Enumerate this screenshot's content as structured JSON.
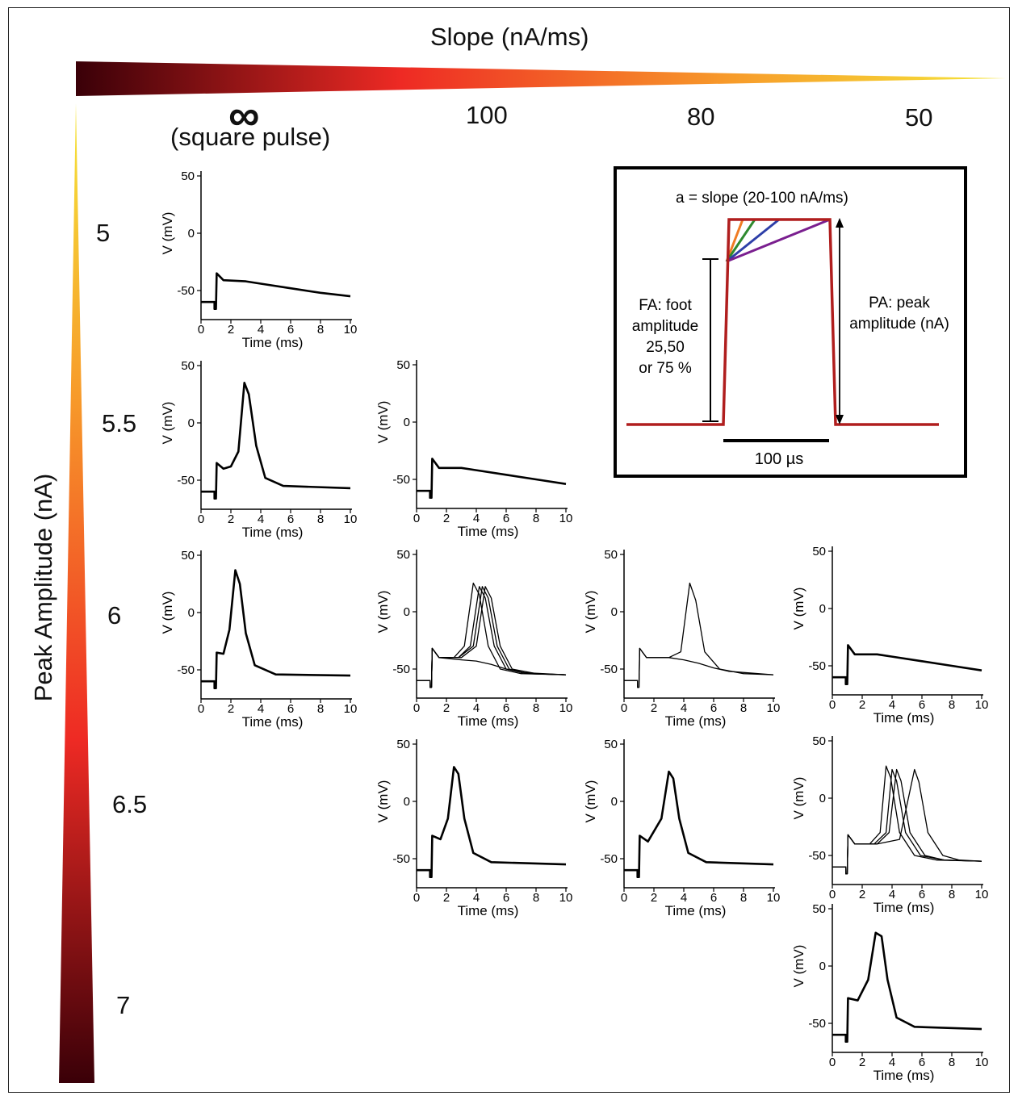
{
  "slope_axis": {
    "title": "Slope (nA/ms)",
    "infinity_symbol": "∞",
    "infinity_caption": "(square pulse)",
    "columns": [
      "100",
      "80",
      "50"
    ]
  },
  "peak_axis": {
    "title": "Peak Amplitude (nA)",
    "rows": [
      "5",
      "5.5",
      "6",
      "6.5",
      "7"
    ]
  },
  "gradient_colors": {
    "dark": "#3a0008",
    "red": "#ee2a24",
    "orange": "#f79a2a",
    "yellow": "#f5e63a"
  },
  "inset": {
    "slope_label": "a = slope (20-100 nA/ms)",
    "fa_label": [
      "FA: foot",
      "amplitude",
      "25,50",
      "or 75 %"
    ],
    "pa_label": [
      "PA: peak",
      "amplitude (nA)"
    ],
    "time_label": "100 µs",
    "slope_line_colors": [
      "#f07b24",
      "#2f8a2f",
      "#2e3fa8",
      "#7a1f8f"
    ],
    "pulse_color": "#b01e1e"
  },
  "chart_data": [
    {
      "type": "line",
      "panel": "square-5",
      "xlabel": "Time (ms)",
      "ylabel": "V (mV)",
      "xticks": [
        "0",
        "2",
        "4",
        "6",
        "8",
        "10"
      ],
      "yticks": [
        "50",
        "0",
        "-50"
      ],
      "xlim": [
        0,
        10
      ],
      "ylim": [
        -70,
        55
      ],
      "response": "subthreshold",
      "traces": [
        {
          "x": [
            0,
            0.9,
            0.9,
            1,
            1.05,
            1.5,
            3,
            4,
            6,
            8,
            10
          ],
          "y": [
            -60,
            -60,
            -66,
            -66,
            -35,
            -41,
            -42,
            -44,
            -48,
            -52,
            -55
          ]
        }
      ]
    },
    {
      "type": "line",
      "panel": "square-5.5",
      "xlabel": "Time (ms)",
      "ylabel": "V (mV)",
      "xticks": [
        "0",
        "2",
        "4",
        "6",
        "8",
        "10"
      ],
      "yticks": [
        "50",
        "0",
        "-50"
      ],
      "xlim": [
        0,
        10
      ],
      "ylim": [
        -70,
        55
      ],
      "response": "spike",
      "spike_peak_time_ms": 3,
      "spike_peak_mv": 35,
      "traces": [
        {
          "x": [
            0,
            0.9,
            0.9,
            1,
            1.05,
            1.5,
            2,
            2.5,
            2.9,
            3.2,
            3.7,
            4.3,
            5.5,
            10
          ],
          "y": [
            -60,
            -60,
            -66,
            -66,
            -35,
            -40,
            -38,
            -25,
            35,
            25,
            -20,
            -48,
            -55,
            -57
          ]
        }
      ]
    },
    {
      "type": "line",
      "panel": "square-6",
      "xlabel": "Time (ms)",
      "ylabel": "V (mV)",
      "xticks": [
        "0",
        "2",
        "4",
        "6",
        "8",
        "10"
      ],
      "yticks": [
        "50",
        "0",
        "-50"
      ],
      "xlim": [
        0,
        10
      ],
      "ylim": [
        -70,
        55
      ],
      "response": "spike",
      "spike_peak_time_ms": 2.3,
      "spike_peak_mv": 37,
      "traces": [
        {
          "x": [
            0,
            0.9,
            0.9,
            1,
            1.05,
            1.5,
            1.9,
            2.3,
            2.6,
            3,
            3.6,
            5,
            10
          ],
          "y": [
            -60,
            -60,
            -66,
            -66,
            -35,
            -36,
            -15,
            37,
            25,
            -18,
            -46,
            -54,
            -55
          ]
        }
      ]
    },
    {
      "type": "line",
      "panel": "slope100-5.5",
      "xlabel": "Time (ms)",
      "ylabel": "V (mV)",
      "xticks": [
        "0",
        "2",
        "4",
        "6",
        "8",
        "10"
      ],
      "yticks": [
        "50",
        "0",
        "-50"
      ],
      "xlim": [
        0,
        10
      ],
      "ylim": [
        -70,
        55
      ],
      "response": "subthreshold",
      "traces": [
        {
          "x": [
            0,
            0.9,
            0.9,
            1,
            1.05,
            1.5,
            3,
            4,
            6,
            8,
            10
          ],
          "y": [
            -60,
            -60,
            -66,
            -66,
            -32,
            -40,
            -40,
            -42,
            -46,
            -50,
            -54
          ]
        }
      ]
    },
    {
      "type": "line",
      "panel": "slope100-6",
      "xlabel": "Time (ms)",
      "ylabel": "V (mV)",
      "xticks": [
        "0",
        "2",
        "4",
        "6",
        "8",
        "10"
      ],
      "yticks": [
        "50",
        "0",
        "-50"
      ],
      "xlim": [
        0,
        10
      ],
      "ylim": [
        -70,
        55
      ],
      "response": "mixed spikes",
      "traces": [
        {
          "x": [
            0,
            0.9,
            0.9,
            1,
            1.05,
            1.5,
            2.5,
            3.2,
            3.8,
            4.2,
            4.8,
            5.6,
            7,
            10
          ],
          "y": [
            -60,
            -60,
            -66,
            -66,
            -32,
            -40,
            -40,
            -30,
            25,
            15,
            -30,
            -50,
            -54,
            -55
          ]
        },
        {
          "x": [
            0,
            0.9,
            0.9,
            1,
            1.05,
            1.5,
            2.8,
            3.6,
            4.2,
            4.6,
            5.2,
            6,
            7.5,
            10
          ],
          "y": [
            -60,
            -60,
            -66,
            -66,
            -32,
            -40,
            -40,
            -30,
            22,
            12,
            -30,
            -50,
            -54,
            -55
          ]
        },
        {
          "x": [
            0,
            0.9,
            0.9,
            1,
            1.05,
            1.5,
            2.8,
            3.8,
            4.4,
            4.8,
            5.4,
            6.2,
            7.5,
            10
          ],
          "y": [
            -60,
            -60,
            -66,
            -66,
            -32,
            -40,
            -40,
            -30,
            22,
            12,
            -30,
            -50,
            -54,
            -55
          ]
        },
        {
          "x": [
            0,
            0.9,
            0.9,
            1,
            1.05,
            1.5,
            3,
            4,
            4.6,
            5,
            5.6,
            6.4,
            8,
            10
          ],
          "y": [
            -60,
            -60,
            -66,
            -66,
            -32,
            -40,
            -40,
            -30,
            22,
            12,
            -30,
            -50,
            -54,
            -55
          ]
        },
        {
          "x": [
            0,
            0.9,
            0.9,
            1,
            1.05,
            1.5,
            3,
            4,
            5,
            6,
            7,
            10
          ],
          "y": [
            -60,
            -60,
            -66,
            -66,
            -32,
            -40,
            -42,
            -43,
            -46,
            -50,
            -53,
            -55
          ]
        }
      ]
    },
    {
      "type": "line",
      "panel": "slope100-6.5",
      "xlabel": "Time (ms)",
      "ylabel": "V (mV)",
      "xticks": [
        "0",
        "2",
        "4",
        "6",
        "8",
        "10"
      ],
      "yticks": [
        "50",
        "0",
        "-50"
      ],
      "xlim": [
        0,
        10
      ],
      "ylim": [
        -70,
        55
      ],
      "response": "spike",
      "spike_peak_time_ms": 2.5,
      "spike_peak_mv": 30,
      "traces": [
        {
          "x": [
            0,
            0.9,
            0.9,
            1,
            1.05,
            1.6,
            2.1,
            2.5,
            2.8,
            3.2,
            3.8,
            5,
            10
          ],
          "y": [
            -60,
            -60,
            -66,
            -66,
            -30,
            -33,
            -15,
            30,
            24,
            -15,
            -45,
            -53,
            -55
          ]
        }
      ]
    },
    {
      "type": "line",
      "panel": "slope80-6",
      "xlabel": "Time (ms)",
      "ylabel": "V (mV)",
      "xticks": [
        "0",
        "2",
        "4",
        "6",
        "8",
        "10"
      ],
      "yticks": [
        "50",
        "0",
        "-50"
      ],
      "xlim": [
        0,
        10
      ],
      "ylim": [
        -70,
        55
      ],
      "response": "one spike",
      "traces": [
        {
          "x": [
            0,
            0.9,
            0.9,
            1,
            1.05,
            1.5,
            3,
            3.8,
            4.4,
            4.8,
            5.4,
            6.4,
            8,
            10
          ],
          "y": [
            -60,
            -60,
            -66,
            -66,
            -32,
            -40,
            -40,
            -35,
            25,
            10,
            -35,
            -50,
            -54,
            -55
          ]
        },
        {
          "x": [
            0,
            0.9,
            0.9,
            1,
            1.05,
            1.5,
            3,
            4,
            5,
            6,
            7,
            10
          ],
          "y": [
            -60,
            -60,
            -66,
            -66,
            -32,
            -40,
            -40,
            -42,
            -45,
            -49,
            -52,
            -55
          ]
        }
      ]
    },
    {
      "type": "line",
      "panel": "slope80-6.5",
      "xlabel": "Time (ms)",
      "ylabel": "V (mV)",
      "xticks": [
        "0",
        "2",
        "4",
        "6",
        "8",
        "10"
      ],
      "yticks": [
        "50",
        "0",
        "-50"
      ],
      "xlim": [
        0,
        10
      ],
      "ylim": [
        -70,
        55
      ],
      "response": "spike",
      "spike_peak_time_ms": 3,
      "spike_peak_mv": 26,
      "traces": [
        {
          "x": [
            0,
            0.9,
            0.9,
            1,
            1.05,
            1.6,
            2.5,
            3,
            3.3,
            3.7,
            4.3,
            5.5,
            10
          ],
          "y": [
            -60,
            -60,
            -66,
            -66,
            -30,
            -35,
            -15,
            26,
            20,
            -15,
            -45,
            -53,
            -55
          ]
        }
      ]
    },
    {
      "type": "line",
      "panel": "slope50-6",
      "xlabel": "Time (ms)",
      "ylabel": "V (mV)",
      "xticks": [
        "0",
        "2",
        "4",
        "6",
        "8",
        "10"
      ],
      "yticks": [
        "50",
        "0",
        "-50"
      ],
      "xlim": [
        0,
        10
      ],
      "ylim": [
        -70,
        55
      ],
      "response": "subthreshold",
      "traces": [
        {
          "x": [
            0,
            0.9,
            0.9,
            1,
            1.05,
            1.5,
            3,
            4,
            6,
            8,
            10
          ],
          "y": [
            -60,
            -60,
            -66,
            -66,
            -32,
            -40,
            -40,
            -42,
            -46,
            -50,
            -54
          ]
        }
      ]
    },
    {
      "type": "line",
      "panel": "slope50-6.5",
      "xlabel": "Time (ms)",
      "ylabel": "V (mV)",
      "xticks": [
        "0",
        "2",
        "4",
        "6",
        "8",
        "10"
      ],
      "yticks": [
        "50",
        "0",
        "-50"
      ],
      "xlim": [
        0,
        10
      ],
      "ylim": [
        -70,
        55
      ],
      "response": "mixed spikes",
      "traces": [
        {
          "x": [
            0,
            0.9,
            0.9,
            1,
            1.05,
            1.5,
            2.5,
            3.2,
            3.6,
            3.9,
            4.5,
            5.5,
            7,
            10
          ],
          "y": [
            -60,
            -60,
            -66,
            -66,
            -32,
            -40,
            -40,
            -30,
            28,
            18,
            -30,
            -50,
            -54,
            -55
          ]
        },
        {
          "x": [
            0,
            0.9,
            0.9,
            1,
            1.05,
            1.5,
            2.8,
            3.6,
            4,
            4.3,
            4.9,
            5.9,
            7.5,
            10
          ],
          "y": [
            -60,
            -60,
            -66,
            -66,
            -32,
            -40,
            -40,
            -30,
            25,
            15,
            -30,
            -50,
            -54,
            -55
          ]
        },
        {
          "x": [
            0,
            0.9,
            0.9,
            1,
            1.05,
            1.5,
            3,
            3.8,
            4.3,
            4.6,
            5.2,
            6.2,
            7.5,
            10
          ],
          "y": [
            -60,
            -60,
            -66,
            -66,
            -32,
            -40,
            -40,
            -30,
            25,
            15,
            -30,
            -50,
            -54,
            -55
          ]
        },
        {
          "x": [
            0,
            0.9,
            0.9,
            1,
            1.05,
            1.5,
            3,
            4.5,
            5.5,
            5.8,
            6.4,
            7.4,
            8.5,
            10
          ],
          "y": [
            -60,
            -60,
            -66,
            -66,
            -32,
            -40,
            -40,
            -36,
            25,
            14,
            -30,
            -50,
            -54,
            -55
          ]
        }
      ]
    },
    {
      "type": "line",
      "panel": "slope50-7",
      "xlabel": "Time (ms)",
      "ylabel": "V (mV)",
      "xticks": [
        "0",
        "2",
        "4",
        "6",
        "8",
        "10"
      ],
      "yticks": [
        "50",
        "0",
        "-50"
      ],
      "xlim": [
        0,
        10
      ],
      "ylim": [
        -70,
        55
      ],
      "response": "spike",
      "spike_peak_time_ms": 2.9,
      "spike_peak_mv": 29,
      "traces": [
        {
          "x": [
            0,
            0.9,
            0.9,
            1,
            1.05,
            1.7,
            2.4,
            2.9,
            3.3,
            3.7,
            4.3,
            5.5,
            10
          ],
          "y": [
            -60,
            -60,
            -66,
            -66,
            -28,
            -30,
            -12,
            29,
            26,
            -12,
            -45,
            -53,
            -55
          ]
        }
      ]
    }
  ]
}
